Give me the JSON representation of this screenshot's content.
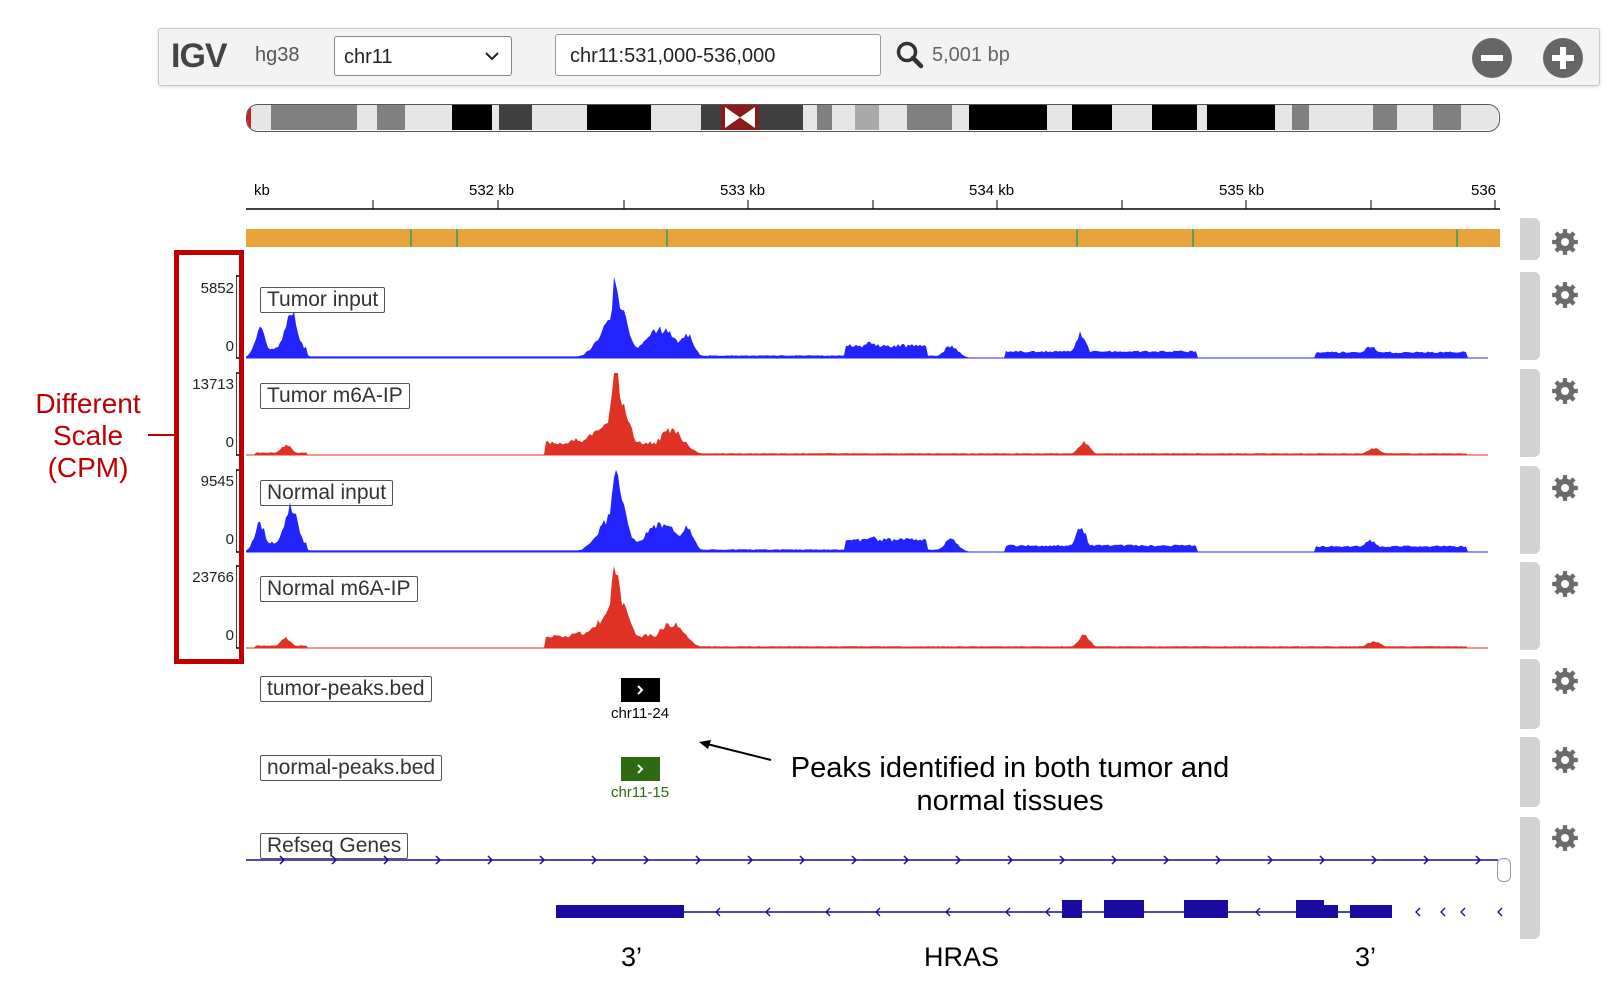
{
  "navbar": {
    "logo": "IGV",
    "genome": "hg38",
    "chromosome": "chr11",
    "locus": "chr11:531,000-536,000",
    "bp_width": "5,001 bp",
    "icons": [
      "search-icon",
      "zoom-out-icon",
      "zoom-in-icon",
      "chevron-down-icon"
    ]
  },
  "ruler": {
    "labels": [
      "kb",
      "532 kb",
      "533 kb",
      "534 kb",
      "535 kb",
      "536"
    ]
  },
  "tracks": [
    {
      "name": "Tumor input",
      "max": "5852",
      "min": "0",
      "color": "#2323ff"
    },
    {
      "name": "Tumor m6A-IP",
      "max": "13713",
      "min": "0",
      "color": "#e03125"
    },
    {
      "name": "Normal input",
      "max": "9545",
      "min": "0",
      "color": "#2323ff"
    },
    {
      "name": "Normal m6A-IP",
      "max": "23766",
      "min": "0",
      "color": "#e03125"
    }
  ],
  "bed_tracks": [
    {
      "name": "tumor-peaks.bed",
      "feature": "chr11-24",
      "color": "#000000"
    },
    {
      "name": "normal-peaks.bed",
      "feature": "chr11-15",
      "color": "#2e6a12"
    }
  ],
  "refseq": {
    "name": "Refseq Genes",
    "color": "#1a0aa0",
    "labels": {
      "left": "3’",
      "center": "HRAS",
      "right": "3’"
    }
  },
  "annotations": {
    "scale_note": "Different Scale (CPM)",
    "peaks_note": "Peaks identified in both tumor and normal tissues"
  }
}
